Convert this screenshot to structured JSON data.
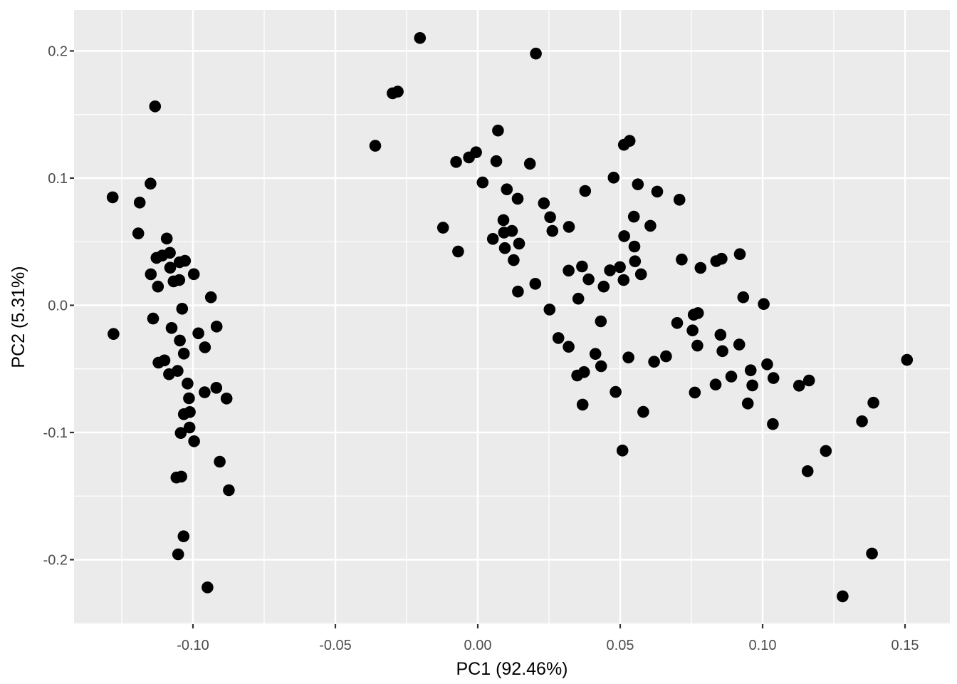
{
  "chart_data": {
    "type": "scatter",
    "title": "",
    "xlabel": "PC1 (92.46%)",
    "ylabel": "PC2 (5.31%)",
    "x_ticks": [
      -0.1,
      -0.05,
      0.0,
      0.05,
      0.1,
      0.15
    ],
    "x_tick_labels": [
      "-0.10",
      "-0.05",
      "0.00",
      "0.05",
      "0.10",
      "0.15"
    ],
    "x_minor_ticks": [
      -0.125,
      -0.075,
      -0.025,
      0.025,
      0.075,
      0.125
    ],
    "y_ticks": [
      -0.2,
      -0.1,
      0.0,
      0.1,
      0.2
    ],
    "y_tick_labels": [
      "-0.2",
      "-0.1",
      "0.0",
      "0.1",
      "0.2"
    ],
    "y_minor_ticks": [
      -0.25,
      -0.15,
      -0.05,
      0.05,
      0.15
    ],
    "xlim": [
      -0.14175,
      0.16575
    ],
    "ylim": [
      -0.2507,
      0.2322
    ],
    "grid": true,
    "legend": "none",
    "point_color": "#000000",
    "panel_color": "#EBEBEB",
    "grid_color": "#FFFFFF",
    "tick_text_color": "#4D4D4D",
    "tick_mark_color": "#333333",
    "points": [
      [
        -0.1133,
        0.1564
      ],
      [
        -0.1149,
        0.0957
      ],
      [
        -0.1282,
        0.0849
      ],
      [
        -0.1187,
        0.0808
      ],
      [
        -0.1192,
        0.0565
      ],
      [
        -0.1092,
        0.0525
      ],
      [
        -0.1081,
        0.0413
      ],
      [
        -0.1128,
        0.0373
      ],
      [
        -0.1108,
        0.0391
      ],
      [
        -0.1047,
        0.0339
      ],
      [
        -0.1028,
        0.035
      ],
      [
        -0.108,
        0.0296
      ],
      [
        -0.1148,
        0.0244
      ],
      [
        -0.0997,
        0.0245
      ],
      [
        -0.1068,
        0.0188
      ],
      [
        -0.1048,
        0.0199
      ],
      [
        -0.1123,
        0.0147
      ],
      [
        -0.0937,
        0.0063
      ],
      [
        -0.1038,
        -0.0027
      ],
      [
        -0.114,
        -0.0104
      ],
      [
        -0.1075,
        -0.0178
      ],
      [
        -0.1279,
        -0.0225
      ],
      [
        -0.0981,
        -0.022
      ],
      [
        -0.0917,
        -0.0167
      ],
      [
        -0.1046,
        -0.0277
      ],
      [
        -0.0958,
        -0.033
      ],
      [
        -0.1032,
        -0.038
      ],
      [
        -0.1121,
        -0.0451
      ],
      [
        -0.11,
        -0.0433
      ],
      [
        -0.1084,
        -0.0542
      ],
      [
        -0.1054,
        -0.0516
      ],
      [
        -0.1019,
        -0.0615
      ],
      [
        -0.0959,
        -0.0684
      ],
      [
        -0.0918,
        -0.0649
      ],
      [
        -0.1014,
        -0.0731
      ],
      [
        -0.0882,
        -0.0733
      ],
      [
        -0.1032,
        -0.0856
      ],
      [
        -0.1011,
        -0.0839
      ],
      [
        -0.1012,
        -0.0961
      ],
      [
        -0.1043,
        -0.1004
      ],
      [
        -0.0996,
        -0.1069
      ],
      [
        -0.0906,
        -0.123
      ],
      [
        -0.1058,
        -0.1354
      ],
      [
        -0.1041,
        -0.1347
      ],
      [
        -0.0874,
        -0.1454
      ],
      [
        -0.1033,
        -0.1816
      ],
      [
        -0.1052,
        -0.1958
      ],
      [
        -0.0949,
        -0.2218
      ],
      [
        -0.0203,
        0.2102
      ],
      [
        -0.0299,
        0.1667
      ],
      [
        -0.0281,
        0.168
      ],
      [
        -0.036,
        0.1254
      ],
      [
        0.0071,
        0.1374
      ],
      [
        -0.0031,
        0.1163
      ],
      [
        -0.0006,
        0.1203
      ],
      [
        -0.0076,
        0.1127
      ],
      [
        0.0065,
        0.1133
      ],
      [
        0.0017,
        0.0966
      ],
      [
        0.0102,
        0.0912
      ],
      [
        0.009,
        0.067
      ],
      [
        -0.0122,
        0.061
      ],
      [
        0.0092,
        0.0572
      ],
      [
        0.012,
        0.0585
      ],
      [
        -0.0069,
        0.0423
      ],
      [
        0.0095,
        0.045
      ],
      [
        0.0053,
        0.0522
      ],
      [
        0.0126,
        0.0355
      ],
      [
        0.0204,
        0.1979
      ],
      [
        0.0513,
        0.1262
      ],
      [
        0.0533,
        0.1293
      ],
      [
        0.0183,
        0.1113
      ],
      [
        0.0477,
        0.1004
      ],
      [
        0.0562,
        0.0951
      ],
      [
        0.0377,
        0.0899
      ],
      [
        0.063,
        0.0894
      ],
      [
        0.014,
        0.0838
      ],
      [
        0.0232,
        0.0802
      ],
      [
        0.0708,
        0.083
      ],
      [
        0.0254,
        0.0693
      ],
      [
        0.0548,
        0.0697
      ],
      [
        0.0262,
        0.0585
      ],
      [
        0.032,
        0.0617
      ],
      [
        0.0606,
        0.0625
      ],
      [
        0.0514,
        0.0544
      ],
      [
        0.0145,
        0.0485
      ],
      [
        0.055,
        0.0462
      ],
      [
        0.0552,
        0.0346
      ],
      [
        0.0716,
        0.036
      ],
      [
        0.0837,
        0.0347
      ],
      [
        0.0856,
        0.0366
      ],
      [
        0.0782,
        0.0294
      ],
      [
        0.0319,
        0.0273
      ],
      [
        0.0366,
        0.0305
      ],
      [
        0.0464,
        0.0275
      ],
      [
        0.0499,
        0.03
      ],
      [
        0.0389,
        0.0204
      ],
      [
        0.0573,
        0.0244
      ],
      [
        0.0512,
        0.0199
      ],
      [
        0.0442,
        0.0147
      ],
      [
        0.0202,
        0.0169
      ],
      [
        0.0141,
        0.0108
      ],
      [
        0.0353,
        0.0052
      ],
      [
        0.0252,
        -0.0033
      ],
      [
        0.092,
        0.0402
      ],
      [
        0.0932,
        0.0063
      ],
      [
        0.1004,
        0.001
      ],
      [
        0.0432,
        -0.0126
      ],
      [
        0.07,
        -0.0139
      ],
      [
        0.0758,
        -0.0074
      ],
      [
        0.0773,
        -0.0061
      ],
      [
        0.0754,
        -0.0197
      ],
      [
        0.0283,
        -0.0257
      ],
      [
        0.0852,
        -0.0232
      ],
      [
        0.0319,
        -0.0326
      ],
      [
        0.0771,
        -0.0317
      ],
      [
        0.0859,
        -0.036
      ],
      [
        0.0413,
        -0.0382
      ],
      [
        0.0529,
        -0.041
      ],
      [
        0.0619,
        -0.0444
      ],
      [
        0.0661,
        -0.0401
      ],
      [
        0.0433,
        -0.0479
      ],
      [
        0.0349,
        -0.0552
      ],
      [
        0.0373,
        -0.0525
      ],
      [
        0.0835,
        -0.0623
      ],
      [
        0.0484,
        -0.0681
      ],
      [
        0.0762,
        -0.0686
      ],
      [
        0.0368,
        -0.0781
      ],
      [
        0.0581,
        -0.0838
      ],
      [
        0.0508,
        -0.1142
      ],
      [
        0.089,
        -0.056
      ],
      [
        0.0918,
        -0.0309
      ],
      [
        0.1507,
        -0.0429
      ],
      [
        0.1016,
        -0.0464
      ],
      [
        0.0958,
        -0.0511
      ],
      [
        0.1038,
        -0.0572
      ],
      [
        0.0964,
        -0.063
      ],
      [
        0.1128,
        -0.0632
      ],
      [
        0.1163,
        -0.0591
      ],
      [
        0.0948,
        -0.0772
      ],
      [
        0.1389,
        -0.0766
      ],
      [
        0.1036,
        -0.0934
      ],
      [
        0.1349,
        -0.0912
      ],
      [
        0.1222,
        -0.1145
      ],
      [
        0.1158,
        -0.1304
      ],
      [
        0.1384,
        -0.1952
      ],
      [
        0.1281,
        -0.2288
      ]
    ]
  }
}
